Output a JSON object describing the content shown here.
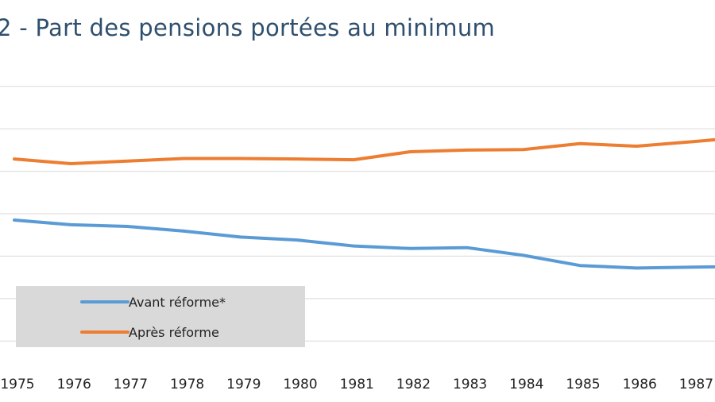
{
  "chart_data": {
    "type": "line",
    "title": "2 - Part des pensions portées au minimum",
    "x": [
      "1975",
      "1976",
      "1977",
      "1978",
      "1979",
      "1980",
      "1981",
      "1982",
      "1983",
      "1984",
      "1985",
      "1986",
      "1987"
    ],
    "series": [
      {
        "name": "Avant réforme*",
        "color": "#5b9bd5",
        "values": [
          4.85,
          4.74,
          4.7,
          4.59,
          4.45,
          4.38,
          4.24,
          4.18,
          4.2,
          4.02,
          3.78,
          3.72,
          3.74
        ]
      },
      {
        "name": "Après réforme",
        "color": "#ed7d31",
        "values": [
          6.29,
          6.18,
          6.24,
          6.3,
          6.3,
          6.29,
          6.27,
          6.46,
          6.5,
          6.51,
          6.65,
          6.59,
          6.7
        ]
      }
    ],
    "ylim": [
      1.5,
      8.5
    ],
    "grid": true,
    "legend": "bottom-left"
  }
}
